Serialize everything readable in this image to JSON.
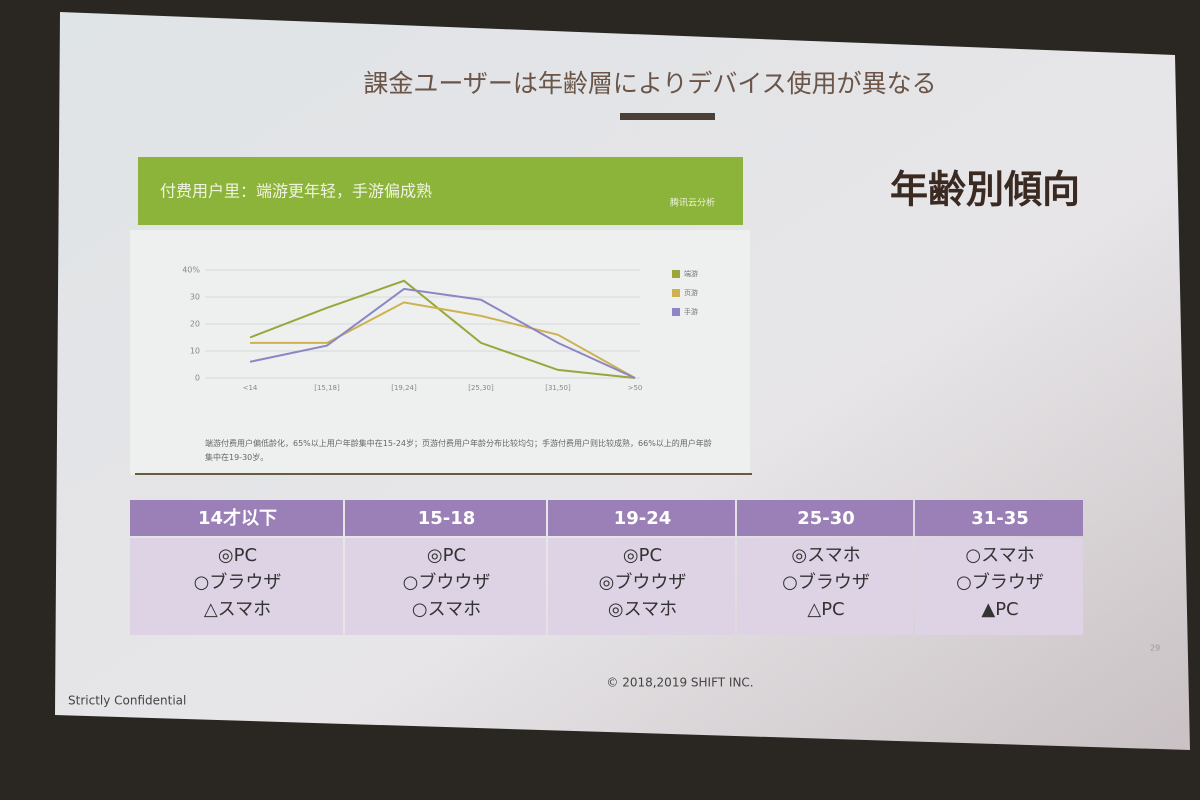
{
  "slide": {
    "title": "課金ユーザーは年齢層によりデバイス使用が異なる",
    "heading": "年齢別傾向",
    "banner": {
      "text": "付费用户里：端游更年轻，手游偏成熟",
      "logo": "腾讯云分析"
    },
    "chart": {
      "type": "line",
      "categories": [
        "<14",
        "[15,18]",
        "[19,24]",
        "[25,30]",
        "[31,50]",
        ">50"
      ],
      "series": [
        {
          "name": "端游",
          "color": "#9aa63c",
          "values": [
            15,
            26,
            36,
            13,
            3,
            0
          ]
        },
        {
          "name": "页游",
          "color": "#cdb250",
          "values": [
            13,
            13,
            28,
            23,
            16,
            0
          ]
        },
        {
          "name": "手游",
          "color": "#8c86c4",
          "values": [
            6,
            12,
            33,
            29,
            13,
            0
          ]
        }
      ],
      "ylim": [
        0,
        40
      ],
      "yticks": [
        0,
        10,
        20,
        30,
        {
          "value": 40,
          "label": "40%"
        }
      ],
      "grid": true,
      "legend": "right",
      "note": "端游付费用户偏低龄化，65%以上用户年龄集中在15-24岁；页游付费用户年龄分布比较均匀；手游付费用户则比较成熟，66%以上的用户年龄集中在19-30岁。"
    },
    "table": {
      "headers": [
        "14才以下",
        "15-18",
        "19-24",
        "25-30",
        "31-35"
      ],
      "rows": [
        [
          [
            "◎PC",
            "○ブラウザ",
            "△スマホ"
          ],
          [
            "◎PC",
            "○ブウウザ",
            "○スマホ"
          ],
          [
            "◎PC",
            "◎ブウウザ",
            "◎スマホ"
          ],
          [
            "◎スマホ",
            "○ブラウザ",
            "△PC"
          ],
          [
            "○スマホ",
            "○ブラウザ",
            "▲PC"
          ]
        ]
      ]
    },
    "page": "29",
    "copyright": "© 2018,2019 SHIFT INC.",
    "confidential": "Strictly Confidential"
  }
}
